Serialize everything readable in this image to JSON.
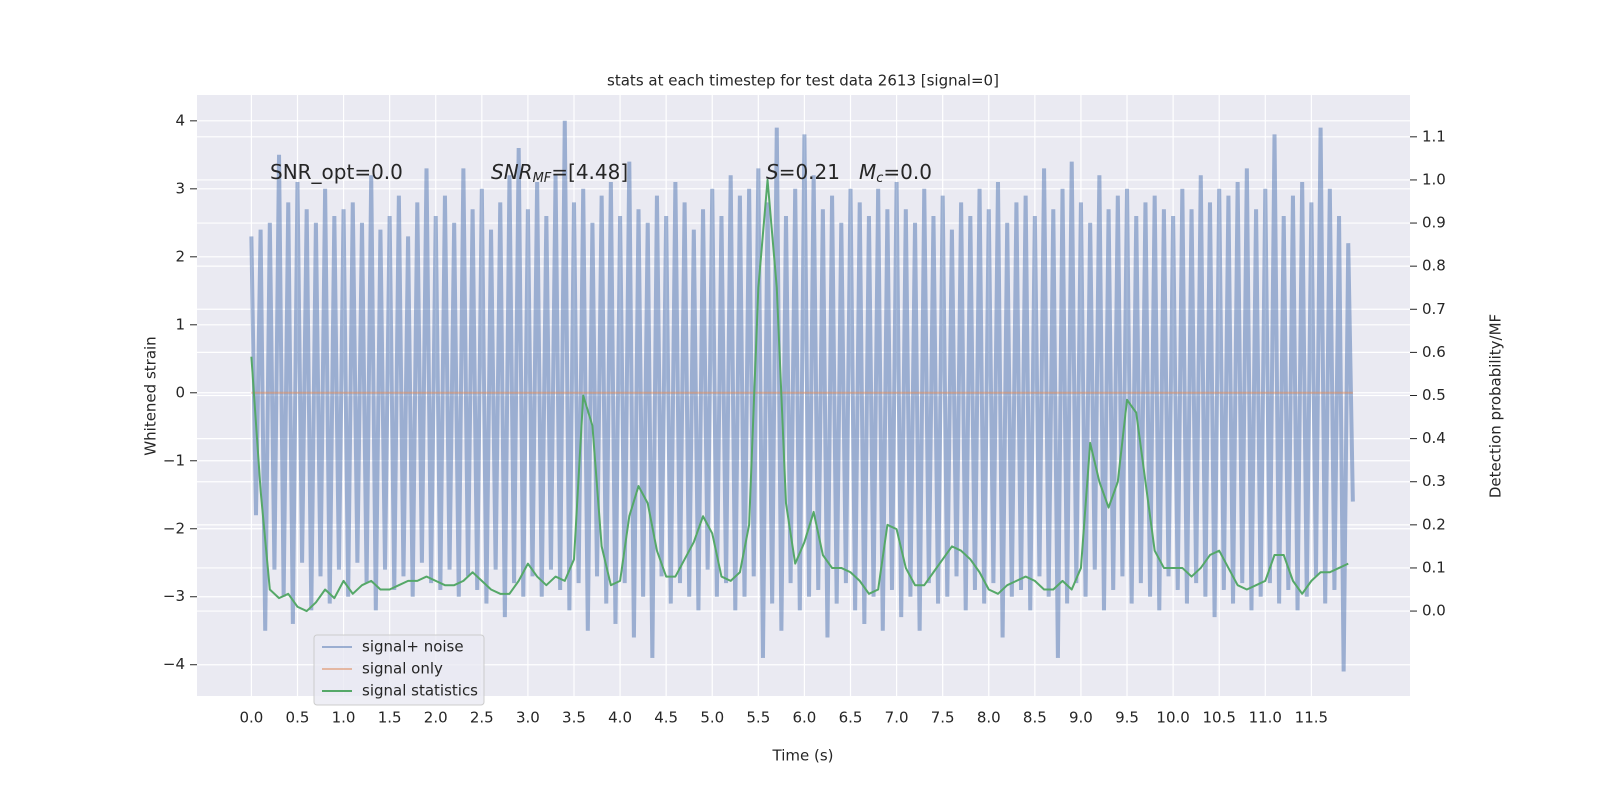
{
  "chart_data": {
    "type": "line",
    "title": "stats at each timestep for test data 2613 [signal=0]",
    "x_label": "Time (s)",
    "y_label": "Whitened strain",
    "y2_label": "Detection probability/MF",
    "xlim": [
      -0.59,
      12.57
    ],
    "ylim": [
      -4.46,
      4.38
    ],
    "y2lim": [
      -0.197,
      1.197
    ],
    "xticks": [
      {
        "value": 0,
        "label": "0.0"
      },
      0.5,
      {
        "value": 1,
        "label": "1.0"
      },
      1.5,
      {
        "value": 2,
        "label": "2.0"
      },
      2.5,
      {
        "value": 3,
        "label": "3.0"
      },
      3.5,
      {
        "value": 4,
        "label": "4.0"
      },
      4.5,
      {
        "value": 5,
        "label": "5.0"
      },
      5.5,
      {
        "value": 6,
        "label": "6.0"
      },
      6.5,
      {
        "value": 7,
        "label": "7.0"
      },
      7.5,
      {
        "value": 8,
        "label": "8.0"
      },
      8.5,
      {
        "value": 9,
        "label": "9.0"
      },
      9.5,
      {
        "value": 10,
        "label": "10.0"
      },
      10.5,
      {
        "value": 11,
        "label": "11.0"
      },
      11.5
    ],
    "yticks": [
      {
        "value": -4,
        "label": "−4"
      },
      {
        "value": -3,
        "label": "−3"
      },
      {
        "value": -2,
        "label": "−2"
      },
      {
        "value": -1,
        "label": "−1"
      },
      0,
      1,
      2,
      3,
      4
    ],
    "y2ticks": [
      {
        "value": 0,
        "label": "0.0"
      },
      0.1,
      0.2,
      0.3,
      0.4,
      0.5,
      0.6,
      0.7,
      0.8,
      0.9,
      {
        "value": 1,
        "label": "1.0"
      },
      1.1
    ],
    "grid": true,
    "legend": "lower left",
    "annotations": [
      {
        "text": "SNR_opt=0.0"
      },
      {
        "text": "SNR",
        "sub": "MF",
        "tail": "=[4.48]"
      },
      {
        "text": "S",
        "tail": "=0.21"
      },
      {
        "text": "M",
        "sub": "c",
        "tail": "=0.0"
      }
    ],
    "series": [
      {
        "name": "signal+ noise",
        "color": "#4c72b0",
        "axis": "y",
        "x": [
          0,
          0.05,
          0.1,
          0.15,
          0.2,
          0.25,
          0.3,
          0.35,
          0.4,
          0.45,
          0.5,
          0.55,
          0.6,
          0.65,
          0.7,
          0.75,
          0.8,
          0.85,
          0.9,
          0.95,
          1,
          1.05,
          1.1,
          1.15,
          1.2,
          1.25,
          1.3,
          1.35,
          1.4,
          1.45,
          1.5,
          1.55,
          1.6,
          1.65,
          1.7,
          1.75,
          1.8,
          1.85,
          1.9,
          1.95,
          2,
          2.05,
          2.1,
          2.15,
          2.2,
          2.25,
          2.3,
          2.35,
          2.4,
          2.45,
          2.5,
          2.55,
          2.6,
          2.65,
          2.7,
          2.75,
          2.8,
          2.85,
          2.9,
          2.95,
          3,
          3.05,
          3.1,
          3.15,
          3.2,
          3.25,
          3.3,
          3.35,
          3.4,
          3.45,
          3.5,
          3.55,
          3.6,
          3.65,
          3.7,
          3.75,
          3.8,
          3.85,
          3.9,
          3.95,
          4,
          4.05,
          4.1,
          4.15,
          4.2,
          4.25,
          4.3,
          4.35,
          4.4,
          4.45,
          4.5,
          4.55,
          4.6,
          4.65,
          4.7,
          4.75,
          4.8,
          4.85,
          4.9,
          4.95,
          5,
          5.05,
          5.1,
          5.15,
          5.2,
          5.25,
          5.3,
          5.35,
          5.4,
          5.45,
          5.5,
          5.55,
          5.6,
          5.65,
          5.7,
          5.75,
          5.8,
          5.85,
          5.9,
          5.95,
          6,
          6.05,
          6.1,
          6.15,
          6.2,
          6.25,
          6.3,
          6.35,
          6.4,
          6.45,
          6.5,
          6.55,
          6.6,
          6.65,
          6.7,
          6.75,
          6.8,
          6.85,
          6.9,
          6.95,
          7,
          7.05,
          7.1,
          7.15,
          7.2,
          7.25,
          7.3,
          7.35,
          7.4,
          7.45,
          7.5,
          7.55,
          7.6,
          7.65,
          7.7,
          7.75,
          7.8,
          7.85,
          7.9,
          7.95,
          8,
          8.05,
          8.1,
          8.15,
          8.2,
          8.25,
          8.3,
          8.35,
          8.4,
          8.45,
          8.5,
          8.55,
          8.6,
          8.65,
          8.7,
          8.75,
          8.8,
          8.85,
          8.9,
          8.95,
          9,
          9.05,
          9.1,
          9.15,
          9.2,
          9.25,
          9.3,
          9.35,
          9.4,
          9.45,
          9.5,
          9.55,
          9.6,
          9.65,
          9.7,
          9.75,
          9.8,
          9.85,
          9.9,
          9.95,
          10,
          10.05,
          10.1,
          10.15,
          10.2,
          10.25,
          10.3,
          10.35,
          10.4,
          10.45,
          10.5,
          10.55,
          10.6,
          10.65,
          10.7,
          10.75,
          10.8,
          10.85,
          10.9,
          10.95,
          11,
          11.05,
          11.1,
          11.15,
          11.2,
          11.25,
          11.3,
          11.35,
          11.4,
          11.45,
          11.5,
          11.55,
          11.6,
          11.65,
          11.7,
          11.75,
          11.8,
          11.85,
          11.9,
          11.95
        ],
        "values": [
          2.3,
          -1.8,
          2.4,
          -3.5,
          2.5,
          -2.6,
          3.5,
          -3.0,
          2.8,
          -3.4,
          3.1,
          -2.5,
          2.7,
          -3.2,
          2.5,
          -2.7,
          3.0,
          -3.1,
          2.6,
          -2.6,
          2.7,
          -3.0,
          2.8,
          -2.5,
          2.5,
          -2.8,
          3.2,
          -3.2,
          2.4,
          -2.6,
          2.6,
          -2.9,
          2.9,
          -2.7,
          2.3,
          -3.0,
          2.8,
          -2.5,
          3.3,
          -2.8,
          2.6,
          -2.9,
          2.9,
          -2.6,
          2.5,
          -3.0,
          3.3,
          -2.7,
          2.7,
          -2.9,
          3.0,
          -3.1,
          2.4,
          -2.6,
          2.8,
          -3.3,
          3.2,
          -2.8,
          3.6,
          -3.0,
          2.7,
          -2.7,
          3.1,
          -3.0,
          2.6,
          -2.6,
          3.2,
          -2.9,
          4.0,
          -3.2,
          2.8,
          -2.8,
          3.0,
          -3.5,
          2.5,
          -2.7,
          2.9,
          -3.1,
          3.1,
          -3.4,
          2.6,
          -2.8,
          3.4,
          -3.6,
          2.7,
          -3.0,
          2.5,
          -3.9,
          2.9,
          -2.7,
          2.6,
          -3.1,
          3.1,
          -2.8,
          2.8,
          -3.0,
          2.4,
          -3.2,
          2.7,
          -2.6,
          3.0,
          -3.0,
          2.6,
          -2.8,
          3.2,
          -3.2,
          2.9,
          -3.0,
          3.0,
          -2.7,
          3.3,
          -3.9,
          2.8,
          -3.1,
          3.9,
          -3.5,
          2.6,
          -2.8,
          3.0,
          -3.2,
          3.8,
          -3.0,
          3.2,
          -2.9,
          2.7,
          -3.6,
          2.9,
          -3.1,
          2.5,
          -2.8,
          3.0,
          -3.2,
          2.8,
          -3.4,
          2.6,
          -3.0,
          3.0,
          -3.5,
          2.7,
          -2.9,
          3.1,
          -3.3,
          2.7,
          -3.0,
          2.5,
          -3.5,
          3.0,
          -2.8,
          2.6,
          -3.1,
          2.9,
          -3.0,
          2.4,
          -2.7,
          2.8,
          -3.2,
          2.6,
          -2.9,
          3.0,
          -3.1,
          2.7,
          -2.8,
          3.1,
          -3.6,
          2.5,
          -3.0,
          2.8,
          -2.9,
          2.9,
          -3.2,
          2.6,
          -2.7,
          3.3,
          -3.0,
          2.7,
          -3.9,
          3.0,
          -3.1,
          3.4,
          -2.8,
          2.8,
          -3.0,
          2.5,
          -2.6,
          3.2,
          -3.2,
          2.7,
          -2.9,
          2.9,
          -2.7,
          3.0,
          -3.1,
          2.6,
          -2.8,
          2.8,
          -3.0,
          2.9,
          -3.2,
          2.7,
          -2.7,
          2.6,
          -2.9,
          3.0,
          -3.1,
          2.7,
          -2.8,
          3.2,
          -3.0,
          2.8,
          -3.3,
          3.0,
          -2.9,
          2.9,
          -3.1,
          3.1,
          -2.8,
          3.3,
          -3.2,
          2.7,
          -3.0,
          3.0,
          -2.8,
          3.8,
          -3.1,
          2.6,
          -2.9,
          2.9,
          -3.2,
          3.1,
          -3.0,
          2.8,
          -2.7,
          3.9,
          -3.1,
          3.0,
          -2.9,
          2.6,
          -4.1,
          2.2,
          -1.6
        ]
      },
      {
        "name": "signal only",
        "color": "#dd8452",
        "axis": "y",
        "x": [
          0,
          11.95
        ],
        "values": [
          0,
          0
        ]
      },
      {
        "name": "signal statistics",
        "color": "#55a868",
        "axis": "y2",
        "x": [
          0,
          0.1,
          0.2,
          0.3,
          0.4,
          0.5,
          0.6,
          0.7,
          0.8,
          0.9,
          1,
          1.1,
          1.2,
          1.3,
          1.4,
          1.5,
          1.6,
          1.7,
          1.8,
          1.9,
          2,
          2.1,
          2.2,
          2.3,
          2.4,
          2.5,
          2.6,
          2.7,
          2.8,
          2.9,
          3,
          3.1,
          3.2,
          3.3,
          3.4,
          3.5,
          3.6,
          3.7,
          3.8,
          3.9,
          4,
          4.1,
          4.2,
          4.3,
          4.4,
          4.5,
          4.6,
          4.7,
          4.8,
          4.9,
          5,
          5.1,
          5.2,
          5.3,
          5.4,
          5.5,
          5.6,
          5.7,
          5.8,
          5.9,
          6,
          6.1,
          6.2,
          6.3,
          6.4,
          6.5,
          6.6,
          6.7,
          6.8,
          6.9,
          7,
          7.1,
          7.2,
          7.3,
          7.4,
          7.5,
          7.6,
          7.7,
          7.8,
          7.9,
          8,
          8.1,
          8.2,
          8.3,
          8.4,
          8.5,
          8.6,
          8.7,
          8.8,
          8.9,
          9,
          9.1,
          9.2,
          9.3,
          9.4,
          9.5,
          9.6,
          9.7,
          9.8,
          9.9,
          10,
          10.1,
          10.2,
          10.3,
          10.4,
          10.5,
          10.6,
          10.7,
          10.8,
          10.9,
          11,
          11.1,
          11.2,
          11.3,
          11.4,
          11.5,
          11.6,
          11.7,
          11.8,
          11.9
        ],
        "values": [
          0.59,
          0.28,
          0.05,
          0.03,
          0.04,
          0.01,
          0.0,
          0.02,
          0.05,
          0.03,
          0.07,
          0.04,
          0.06,
          0.07,
          0.05,
          0.05,
          0.06,
          0.07,
          0.07,
          0.08,
          0.07,
          0.06,
          0.06,
          0.07,
          0.09,
          0.07,
          0.05,
          0.04,
          0.04,
          0.07,
          0.11,
          0.08,
          0.06,
          0.08,
          0.07,
          0.12,
          0.5,
          0.43,
          0.15,
          0.06,
          0.07,
          0.22,
          0.29,
          0.25,
          0.14,
          0.08,
          0.08,
          0.12,
          0.16,
          0.22,
          0.18,
          0.08,
          0.07,
          0.09,
          0.2,
          0.75,
          1.0,
          0.75,
          0.25,
          0.11,
          0.16,
          0.23,
          0.13,
          0.1,
          0.1,
          0.09,
          0.07,
          0.04,
          0.05,
          0.2,
          0.19,
          0.1,
          0.06,
          0.06,
          0.09,
          0.12,
          0.15,
          0.14,
          0.12,
          0.09,
          0.05,
          0.04,
          0.06,
          0.07,
          0.08,
          0.07,
          0.05,
          0.05,
          0.07,
          0.05,
          0.1,
          0.39,
          0.3,
          0.24,
          0.3,
          0.49,
          0.46,
          0.3,
          0.14,
          0.1,
          0.1,
          0.1,
          0.08,
          0.1,
          0.13,
          0.14,
          0.1,
          0.06,
          0.05,
          0.06,
          0.07,
          0.13,
          0.13,
          0.07,
          0.04,
          0.07,
          0.09,
          0.09,
          0.1,
          0.11
        ]
      }
    ]
  }
}
